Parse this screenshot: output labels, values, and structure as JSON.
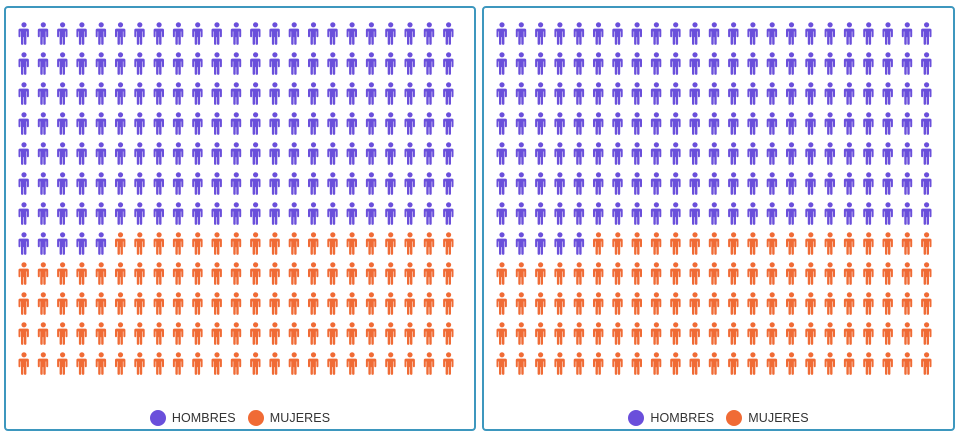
{
  "colors": {
    "hombres": "#6a4fdb",
    "mujeres": "#f06b35",
    "border": "#3d97be"
  },
  "legend": [
    {
      "key": "hombres",
      "label": "HOMBRES"
    },
    {
      "key": "mujeres",
      "label": "MUJERES"
    }
  ],
  "chart_data": [
    {
      "type": "pictogram",
      "icon": "person-icon",
      "columns": 23,
      "rows": 12,
      "series": [
        {
          "name": "HOMBRES",
          "count": 166
        },
        {
          "name": "MUJERES",
          "count": 110
        }
      ]
    },
    {
      "type": "pictogram",
      "icon": "person-icon",
      "columns": 23,
      "rows": 12,
      "series": [
        {
          "name": "HOMBRES",
          "count": 166
        },
        {
          "name": "MUJERES",
          "count": 110
        }
      ]
    }
  ]
}
